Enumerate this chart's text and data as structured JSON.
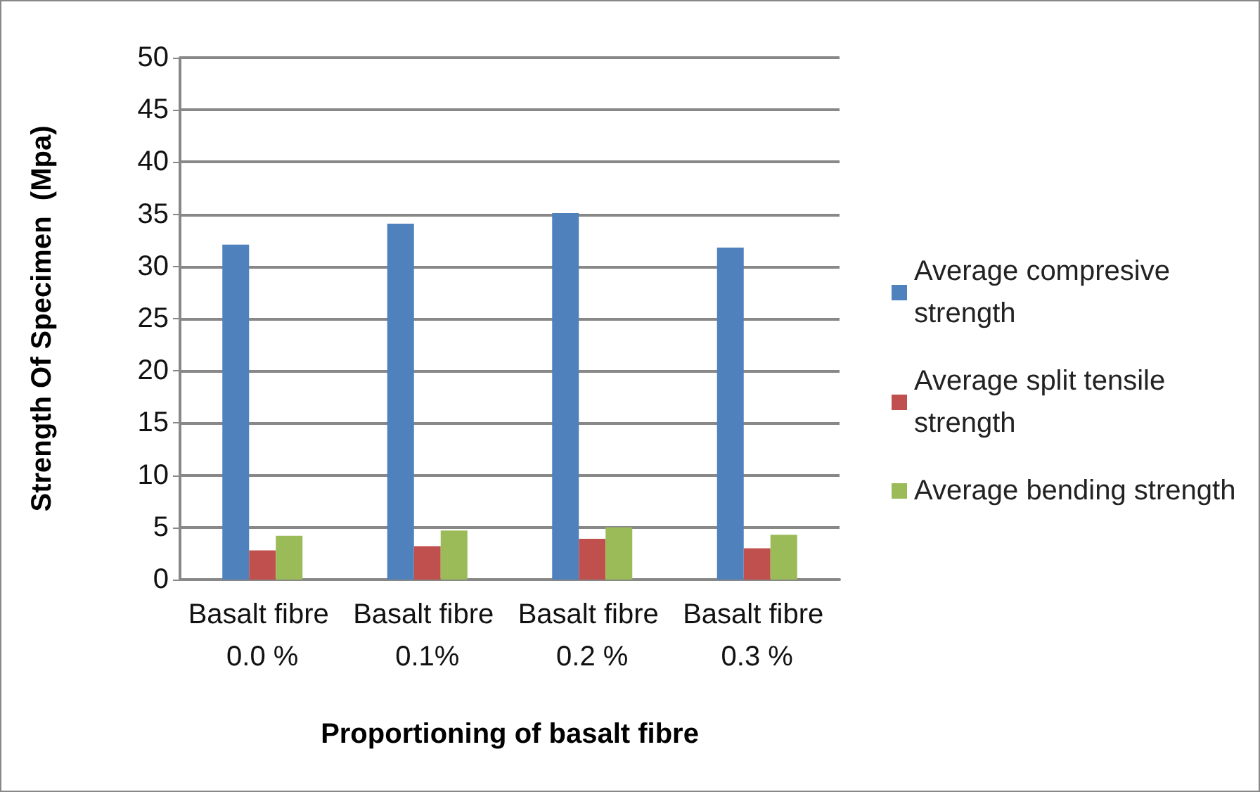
{
  "chart_data": {
    "type": "bar",
    "xlabel": "Proportioning of basalt fibre",
    "ylabel": "Strength Of Specimen  (Mpa)",
    "categories": [
      "Basalt fibre 0.0 %",
      "Basalt fibre 0.1%",
      "Basalt fibre 0.2 %",
      "Basalt fibre 0.3 %"
    ],
    "series": [
      {
        "name": "Average compresive strength",
        "color": "#4f81bd",
        "values": [
          32.1,
          34.1,
          35.1,
          31.8
        ]
      },
      {
        "name": "Average split tensile strength",
        "color": "#c0504d",
        "values": [
          2.8,
          3.2,
          3.9,
          3.0
        ]
      },
      {
        "name": "Average bending strength",
        "color": "#9bbb59",
        "values": [
          4.2,
          4.7,
          5.0,
          4.3
        ]
      }
    ],
    "ylim": [
      0,
      50
    ],
    "yticks": [
      0,
      5,
      10,
      15,
      20,
      25,
      30,
      35,
      40,
      45,
      50
    ],
    "grid": "y",
    "legend": "right"
  }
}
